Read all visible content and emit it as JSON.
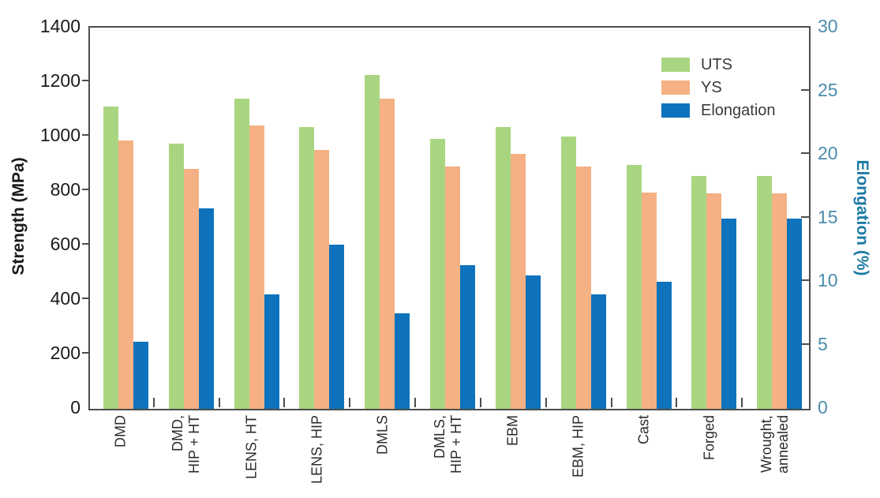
{
  "chart_data": {
    "type": "bar",
    "title": "",
    "background": "#ffffff",
    "grid": false,
    "categories": [
      "DMD",
      "DMD, HIP + HT",
      "LENS, HT",
      "LENS, HIP",
      "DMLS",
      "DMLS, HIP + HT",
      "EBM",
      "EBM, HIP",
      "Cast",
      "Forged",
      "Wrought, annealed"
    ],
    "category_label_lines": [
      [
        "DMD"
      ],
      [
        "DMD,",
        "HIP + HT"
      ],
      [
        "LENS, HT"
      ],
      [
        "LENS, HIP"
      ],
      [
        "DMLS"
      ],
      [
        "DMLS,",
        "HIP + HT"
      ],
      [
        "EBM"
      ],
      [
        "EBM, HIP"
      ],
      [
        "Cast"
      ],
      [
        "Forged"
      ],
      [
        "Wrought,",
        "annealed"
      ]
    ],
    "series": [
      {
        "name": "UTS",
        "axis": "left",
        "color": "#a9d580",
        "values": [
          1110,
          975,
          1140,
          1035,
          1225,
          990,
          1035,
          1000,
          895,
          855,
          855
        ]
      },
      {
        "name": "YS",
        "axis": "left",
        "color": "#f5b183",
        "values": [
          985,
          880,
          1040,
          950,
          1140,
          890,
          935,
          890,
          795,
          790,
          790
        ]
      },
      {
        "name": "Elongation",
        "axis": "right",
        "color": "#0e73bc",
        "values": [
          5.3,
          15.8,
          9.0,
          12.9,
          7.5,
          11.3,
          10.5,
          9.0,
          10.0,
          15.0,
          15.0
        ]
      }
    ],
    "left_axis": {
      "label": "Strength (MPa)",
      "min": 0,
      "max": 1400,
      "tick_step": 200,
      "ticks": [
        0,
        200,
        400,
        600,
        800,
        1000,
        1200,
        1400
      ],
      "text_color": "#1a1a1a"
    },
    "right_axis": {
      "label": "Elongation (%)",
      "min": 0,
      "max": 30,
      "tick_step": 5,
      "ticks": [
        0,
        5,
        10,
        15,
        20,
        25,
        30
      ],
      "text_color": "#4a8cad",
      "title_color": "#1d7aa4"
    },
    "legend": {
      "position": "top-right",
      "entries": [
        "UTS",
        "YS",
        "Elongation"
      ]
    }
  }
}
